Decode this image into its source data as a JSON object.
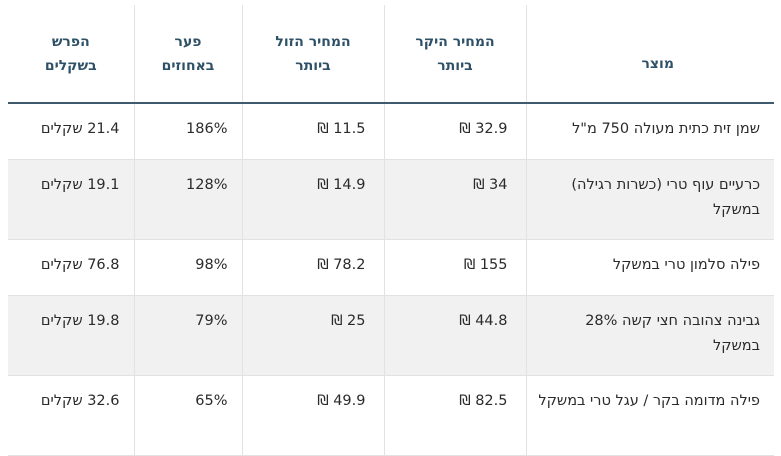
{
  "headers": {
    "product": "מוצר",
    "max_price_line1": "המחיר היקר",
    "max_price_line2": "ביותר",
    "min_price_line1": "המחיר הזול",
    "min_price_line2": "ביותר",
    "gap_line1": "פער",
    "gap_line2": "באחוזים",
    "diff_line1": "הפרש",
    "diff_line2": "בשקלים"
  },
  "rows": [
    {
      "product": "שמן זית כתית מעולה 750 מ\"ל",
      "max": "32.9 ₪",
      "min": "11.5 ₪",
      "gap": "186%",
      "diff": "21.4 שקלים"
    },
    {
      "product": "כרעיים עוף טרי (כשרות רגילה) במשקל",
      "max": "34 ₪",
      "min": "14.9 ₪",
      "gap": "128%",
      "diff": "19.1 שקלים"
    },
    {
      "product": "פילה סלמון טרי במשקל",
      "max": "155 ₪",
      "min": "78.2 ₪",
      "gap": "98%",
      "diff": "76.8 שקלים"
    },
    {
      "product": "גבינה צהובה חצי קשה 28% במשקל",
      "max": "44.8 ₪",
      "min": "25 ₪",
      "gap": "79%",
      "diff": "19.8 שקלים"
    },
    {
      "product": "פילה מדומה בקר / עגל טרי במשקל",
      "max": "82.5  ₪",
      "min": "49.9 ₪",
      "gap": "65%",
      "diff": "32.6 שקלים"
    }
  ]
}
